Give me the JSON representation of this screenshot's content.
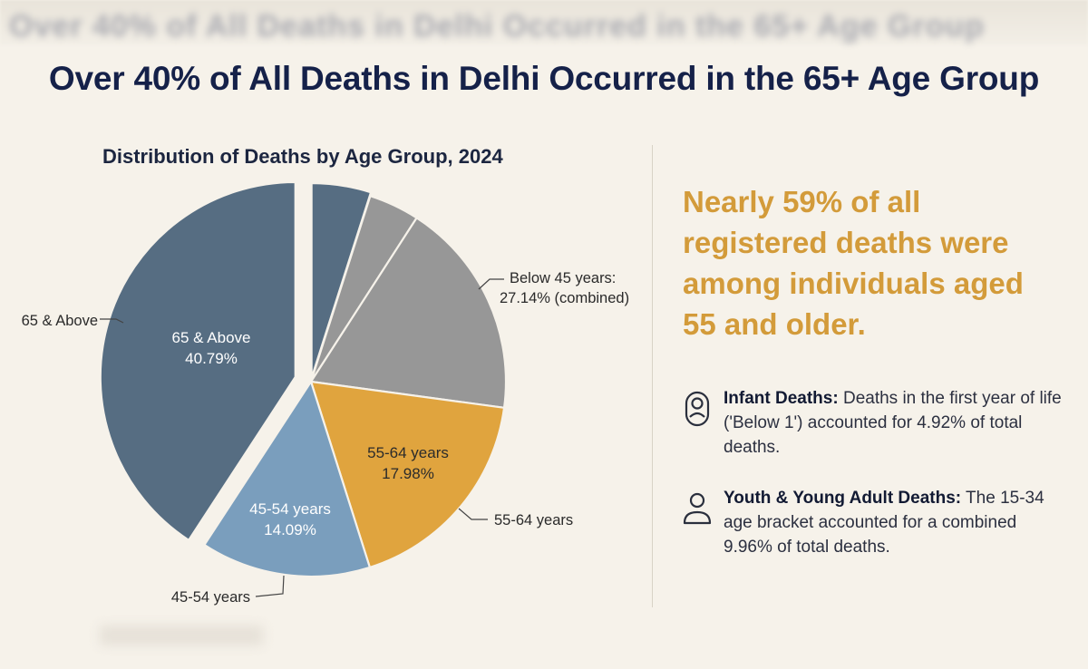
{
  "header": {
    "title": "Over 40% of All Deaths in Delhi Occurred in the 65+ Age Group"
  },
  "chart_data": {
    "type": "pie",
    "title": "Distribution of Deaths by Age Group, 2024",
    "slices": [
      {
        "key": "below1",
        "value": 4.92,
        "color": "#566d82",
        "inner_label": "",
        "inner_value": "",
        "callout": ""
      },
      {
        "key": "b1",
        "value": 4.2,
        "color": "#979797",
        "inner_label": "",
        "inner_value": "",
        "callout": ""
      },
      {
        "key": "b2",
        "value": 18.02,
        "color": "#979797",
        "inner_label": "",
        "inner_value": "",
        "callout": ""
      },
      {
        "key": "55-64",
        "value": 17.98,
        "color": "#e0a43e",
        "inner_label": "55-64 years",
        "inner_value": "17.98%",
        "callout": "55-64 years"
      },
      {
        "key": "45-54",
        "value": 14.09,
        "color": "#7a9ebd",
        "inner_label": "45-54 years",
        "inner_value": "14.09%",
        "callout": "45-54 years"
      },
      {
        "key": "65plus",
        "value": 40.79,
        "color": "#566d82",
        "inner_label": "65 & Above",
        "inner_value": "40.79%",
        "callout": "65 & Above"
      }
    ],
    "group_callout": {
      "line1": "Below 45 years:",
      "line2": "27.14% (combined)"
    }
  },
  "sidebar": {
    "highlight": "Nearly 59% of all registered deaths were among individuals aged 55 and older.",
    "facts": [
      {
        "icon": "infant-icon",
        "heading": "Infant Deaths:",
        "text": "Deaths in the first year of life ('Below 1') accounted for 4.92% of total deaths."
      },
      {
        "icon": "person-icon",
        "heading": "Youth & Young Adult Deaths:",
        "text": "The 15-34 age bracket accounted for a combined 9.96% of total deaths."
      }
    ]
  }
}
